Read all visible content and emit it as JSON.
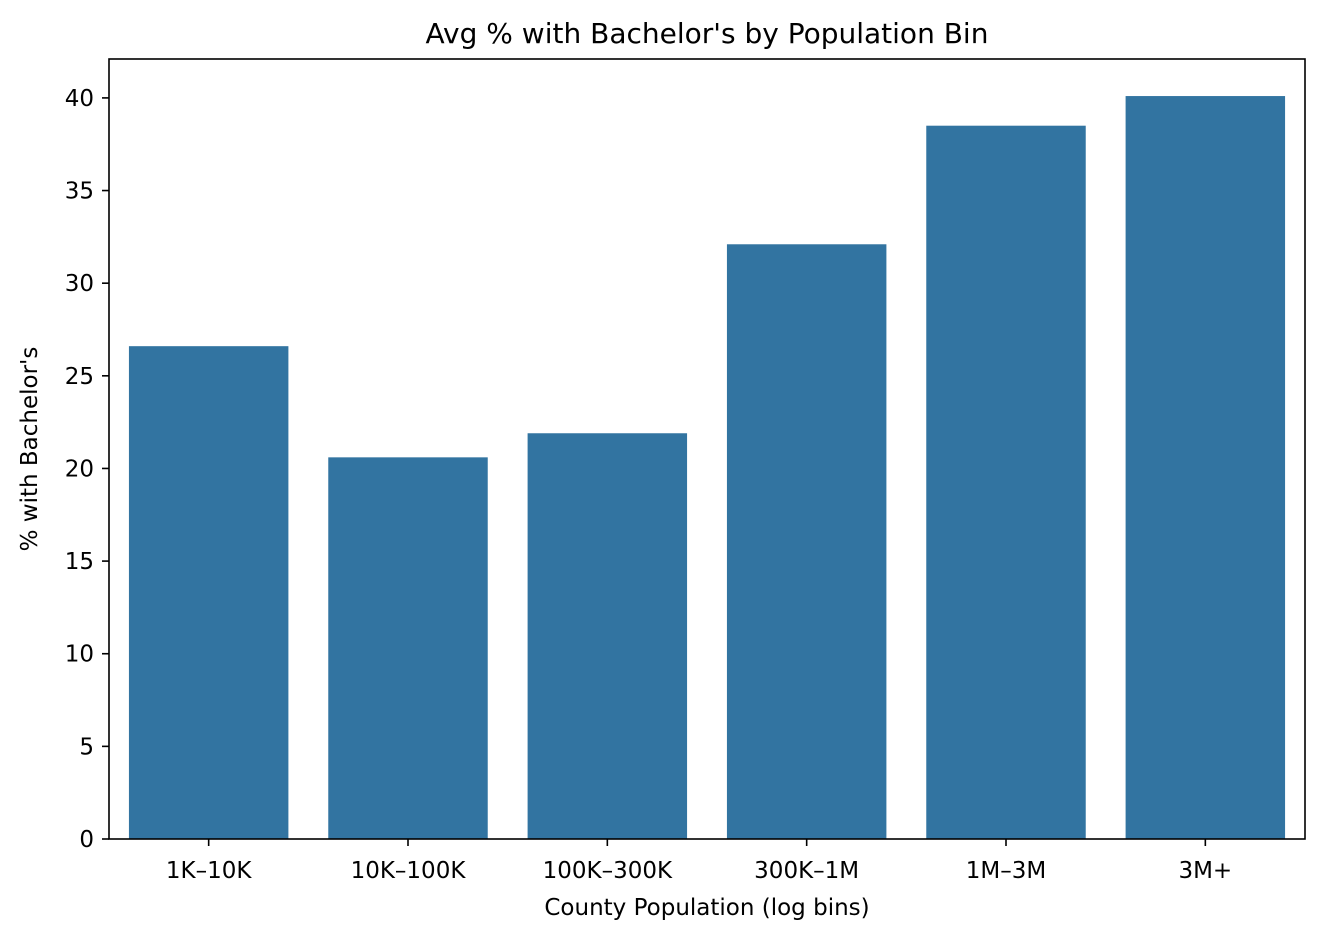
{
  "chart_data": {
    "type": "bar",
    "title": "Avg % with Bachelor's by Population Bin",
    "xlabel": "County Population (log bins)",
    "ylabel": "% with Bachelor's",
    "categories": [
      "1K–10K",
      "10K–100K",
      "100K–300K",
      "300K–1M",
      "1M–3M",
      "3M+"
    ],
    "values": [
      26.6,
      20.6,
      21.9,
      32.1,
      38.5,
      40.1
    ],
    "ylim": [
      0,
      42.1
    ],
    "yticks": [
      0,
      5,
      10,
      15,
      20,
      25,
      30,
      35,
      40
    ],
    "grid": false,
    "legend": "none",
    "colors": {
      "bar": "#3274a1",
      "axis": "#000000",
      "background": "#ffffff"
    }
  }
}
